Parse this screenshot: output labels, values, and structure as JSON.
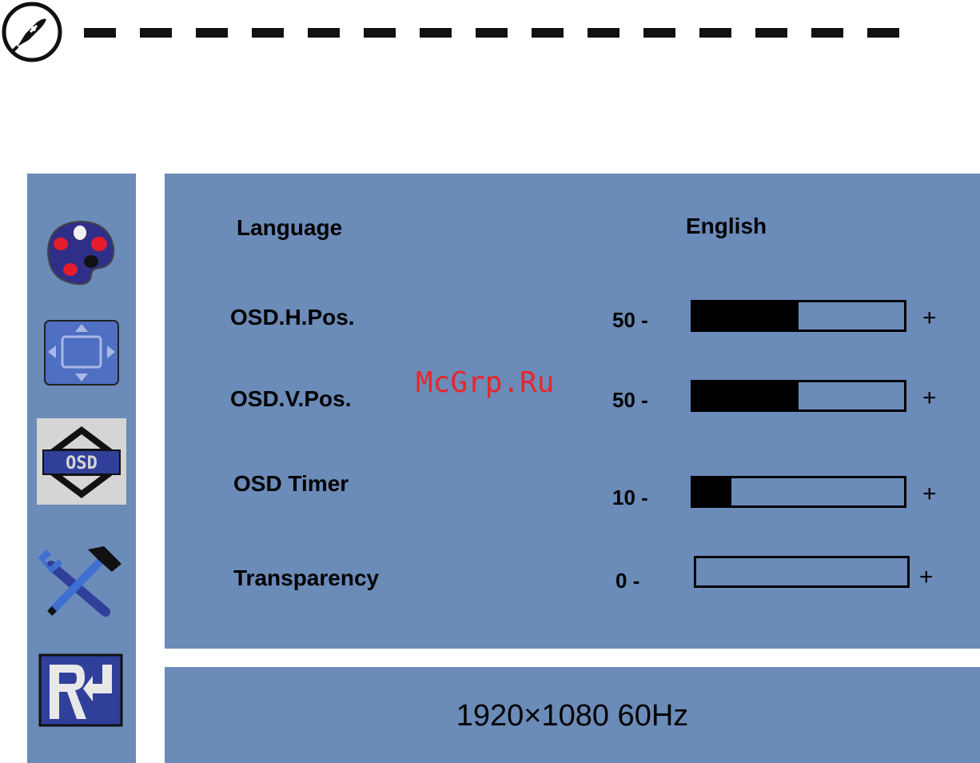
{
  "header": {
    "logo_icon": "acer-logo-icon"
  },
  "watermark": "McGrp.Ru",
  "sidebar": {
    "items": [
      {
        "name": "color-palette-icon",
        "selected": false
      },
      {
        "name": "image-position-icon",
        "selected": false
      },
      {
        "name": "osd-settings-icon",
        "selected": true
      },
      {
        "name": "setup-tools-icon",
        "selected": false
      },
      {
        "name": "reset-return-icon",
        "selected": false
      }
    ]
  },
  "osd": {
    "language": {
      "label": "Language",
      "value": "English"
    },
    "h_pos": {
      "label": "OSD.H.Pos.",
      "value": "50",
      "minus": "-",
      "plus": "+",
      "level": 0.5
    },
    "v_pos": {
      "label": "OSD.V.Pos.",
      "value": "50",
      "minus": "-",
      "plus": "+",
      "level": 0.5
    },
    "timer": {
      "label": "OSD Timer",
      "value": "10",
      "minus": "-",
      "plus": "+",
      "level": 0.18
    },
    "transparency": {
      "label": "Transparency",
      "value": "0",
      "minus": "-",
      "plus": "+",
      "level": 0
    }
  },
  "status": {
    "resolution": "1920×1080  60Hz"
  },
  "colors": {
    "panel": "#6b8bb8",
    "selected": "#d5d5d5",
    "bar_fill": "#000000",
    "watermark": "#e8262b"
  }
}
